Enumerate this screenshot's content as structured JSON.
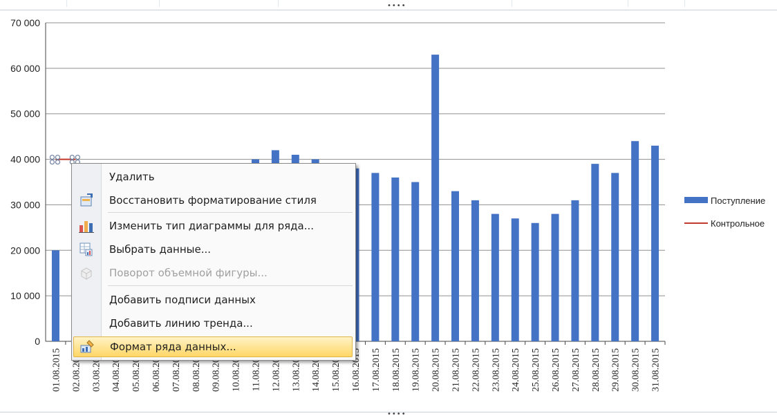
{
  "chart_data": {
    "type": "bar",
    "categories": [
      "01.08.2015",
      "02.08.2015",
      "03.08.2015",
      "04.08.2015",
      "05.08.2015",
      "06.08.2015",
      "07.08.2015",
      "08.08.2015",
      "09.08.2015",
      "10.08.2015",
      "11.08.2015",
      "12.08.2015",
      "13.08.2015",
      "14.08.2015",
      "15.08.2015",
      "16.08.2015",
      "17.08.2015",
      "18.08.2015",
      "19.08.2015",
      "20.08.2015",
      "21.08.2015",
      "22.08.2015",
      "23.08.2015",
      "24.08.2015",
      "25.08.2015",
      "26.08.2015",
      "27.08.2015",
      "28.08.2015",
      "29.08.2015",
      "30.08.2015",
      "31.08.2015"
    ],
    "series": [
      {
        "name": "Поступление",
        "type": "bar",
        "color": "#4472c4",
        "values": [
          20000,
          null,
          null,
          null,
          null,
          null,
          null,
          null,
          null,
          null,
          40000,
          42000,
          41000,
          40000,
          null,
          38000,
          37000,
          36000,
          35000,
          63000,
          33000,
          31000,
          28000,
          27000,
          26000,
          28000,
          31000,
          39000,
          37000,
          44000,
          43000
        ]
      },
      {
        "name": "Контрольное",
        "type": "line",
        "color": "#c0392b",
        "values": [
          40000,
          40000,
          40000,
          40000,
          40000,
          40000,
          40000,
          40000,
          40000,
          40000,
          40000,
          40000,
          40000,
          40000,
          40000,
          40000,
          40000,
          40000,
          40000,
          40000,
          40000,
          40000,
          40000,
          40000,
          40000,
          40000,
          40000,
          40000,
          40000,
          40000,
          40000
        ]
      }
    ],
    "yticks": [
      "0",
      "10 000",
      "20 000",
      "30 000",
      "40 000",
      "50 000",
      "60 000",
      "70 000"
    ],
    "ylim": [
      0,
      70000
    ],
    "grid": true,
    "legend": "right"
  },
  "legend": {
    "items": [
      {
        "label": "Поступление",
        "marker": "bar",
        "color": "#4472c4"
      },
      {
        "label": "Контрольное",
        "marker": "line",
        "color": "#c0392b"
      }
    ]
  },
  "context_menu": {
    "items": [
      {
        "label": "Удалить",
        "icon": "none",
        "disabled": false,
        "highlighted": false
      },
      {
        "label": "Восстановить форматирование стиля",
        "icon": "reset-style-icon",
        "disabled": false,
        "highlighted": false
      },
      {
        "label": "Изменить тип диаграммы для ряда...",
        "icon": "chart-type-icon",
        "disabled": false,
        "highlighted": false
      },
      {
        "label": "Выбрать данные...",
        "icon": "select-data-icon",
        "disabled": false,
        "highlighted": false
      },
      {
        "label": "Поворот объемной фигуры...",
        "icon": "3d-rotation-icon",
        "disabled": true,
        "highlighted": false
      },
      {
        "label": "Добавить подписи данных",
        "icon": "none",
        "disabled": false,
        "highlighted": false
      },
      {
        "label": "Добавить линию тренда...",
        "icon": "none",
        "disabled": false,
        "highlighted": false
      },
      {
        "label": "Формат ряда данных...",
        "icon": "format-series-icon",
        "disabled": false,
        "highlighted": true
      }
    ]
  },
  "window": {
    "handle_glyph": "••••"
  }
}
